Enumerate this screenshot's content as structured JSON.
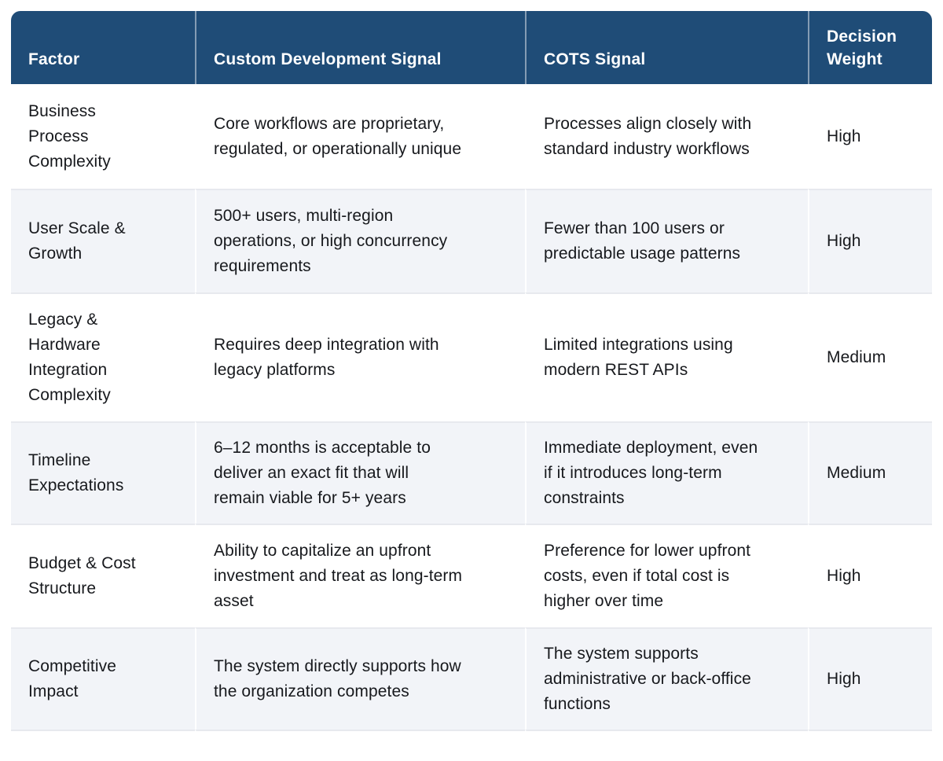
{
  "table": {
    "columns": [
      "Factor",
      "Custom Development Signal",
      "COTS Signal",
      "Decision Weight"
    ],
    "rows": [
      {
        "factor": "Business Process Complexity",
        "custom": "Core workflows are proprietary, regulated, or operationally unique",
        "cots": "Processes align closely with standard industry workflows",
        "weight": "High"
      },
      {
        "factor": "User Scale & Growth",
        "custom": "500+ users, multi-region operations, or high concurrency requirements",
        "cots": "Fewer than 100 users or predictable usage patterns",
        "weight": "High"
      },
      {
        "factor": "Legacy & Hardware Integration Complexity",
        "custom": "Requires deep integration with legacy platforms",
        "cots": "Limited integrations using modern REST APIs",
        "weight": "Medium"
      },
      {
        "factor": "Timeline Expectations",
        "custom": "6–12 months is acceptable to deliver an exact fit that will remain viable for 5+ years",
        "cots": "Immediate deployment, even if it introduces long-term constraints",
        "weight": "Medium"
      },
      {
        "factor": "Budget & Cost Structure",
        "custom": "Ability to capitalize an upfront investment and treat as long-term asset",
        "cots": "Preference for lower upfront costs, even if total cost is higher over time",
        "weight": "High"
      },
      {
        "factor": "Competitive Impact",
        "custom": "The system directly supports how the organization competes",
        "cots": "The system supports administrative or back-office functions",
        "weight": "High"
      }
    ],
    "colors": {
      "header_bg": "#1f4c77",
      "header_text": "#ffffff",
      "row_bg": "#ffffff",
      "row_alt_bg": "#f2f4f8",
      "divider": "#e7e9ee",
      "body_text": "#17191d"
    }
  }
}
